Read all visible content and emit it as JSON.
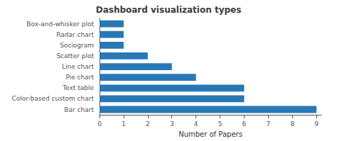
{
  "chart_data": {
    "type": "bar",
    "orientation": "horizontal",
    "title": "Dashboard visualization types",
    "xlabel": "Number of Papers",
    "categories": [
      "Bar chart",
      "Color-based custom chart",
      "Text table",
      "Pie chart",
      "Line chart",
      "Scatter plot",
      "Sociogram",
      "Radar chart",
      "Box-and-whisker plot"
    ],
    "values": [
      9,
      6,
      6,
      4,
      3,
      2,
      1,
      1,
      1
    ],
    "color": "#2878b5",
    "xlim": [
      0,
      9.2
    ],
    "xticks": [
      0,
      1,
      2,
      3,
      4,
      5,
      6,
      7,
      8,
      9
    ],
    "grid": false
  }
}
